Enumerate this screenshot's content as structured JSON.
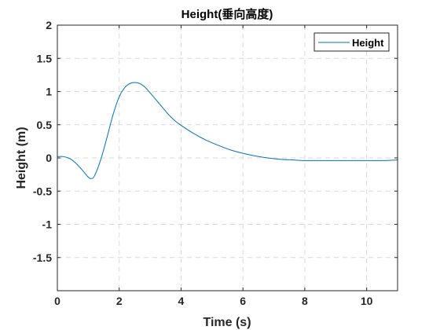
{
  "chart_data": {
    "type": "line",
    "title": "Height(垂向高度)",
    "xlabel": "Time (s)",
    "ylabel": "Height (m)",
    "xlim": [
      0,
      11
    ],
    "ylim": [
      -2,
      2
    ],
    "xticks": [
      0,
      2,
      4,
      6,
      8,
      10
    ],
    "xtick_labels": [
      "0",
      "2",
      "4",
      "6",
      "8",
      "10"
    ],
    "yticks": [
      2,
      1.5,
      1,
      0.5,
      0,
      -0.5,
      -1,
      -1.5
    ],
    "ytick_labels": [
      "2",
      "1.5",
      "1",
      "0.5",
      "0",
      "-0.5",
      "-1",
      "-1.5"
    ],
    "grid": true,
    "legend_position": "top-right",
    "series": [
      {
        "name": "Height",
        "color": "#0072bd",
        "x": [
          0,
          0.2,
          0.4,
          0.6,
          0.8,
          1.0,
          1.1,
          1.2,
          1.4,
          1.6,
          1.8,
          2.0,
          2.2,
          2.4,
          2.6,
          2.8,
          3.0,
          3.2,
          3.4,
          3.6,
          3.8,
          4.0,
          4.4,
          4.8,
          5.2,
          5.6,
          6.0,
          6.4,
          6.8,
          7.2,
          7.6,
          8.0,
          8.5,
          9.0,
          9.5,
          10.0,
          10.5,
          11.0
        ],
        "y": [
          0.02,
          0.02,
          -0.01,
          -0.08,
          -0.18,
          -0.29,
          -0.31,
          -0.27,
          -0.03,
          0.3,
          0.65,
          0.92,
          1.07,
          1.13,
          1.13,
          1.08,
          0.98,
          0.87,
          0.76,
          0.65,
          0.56,
          0.49,
          0.37,
          0.27,
          0.19,
          0.12,
          0.07,
          0.03,
          0.0,
          -0.02,
          -0.03,
          -0.04,
          -0.04,
          -0.04,
          -0.04,
          -0.04,
          -0.04,
          -0.03
        ]
      }
    ]
  }
}
